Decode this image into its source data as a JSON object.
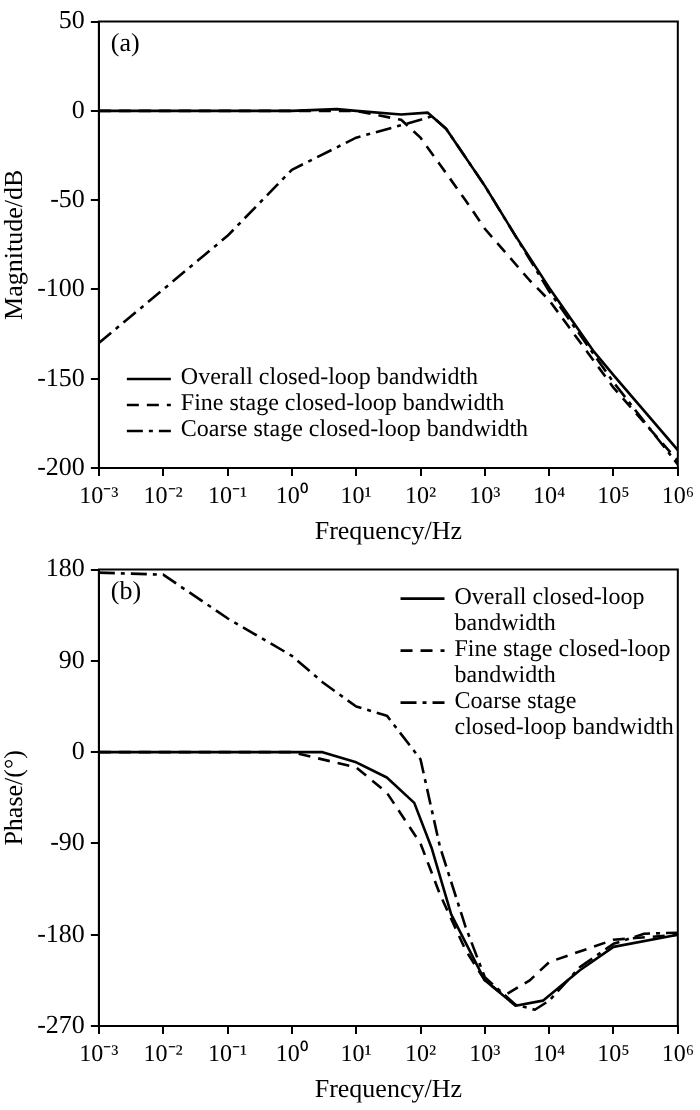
{
  "chart_data": [
    {
      "type": "line",
      "xlabel": "Frequency/Hz",
      "ylabel": "Magnitude/dB",
      "annotations": [
        "(a)"
      ],
      "log": "x",
      "grid": false,
      "legend": "bottom left",
      "marker": "none",
      "xlim": [
        0.001,
        1000000
      ],
      "xticks": [
        {
          "value": 0.001,
          "label": "10⁻³"
        },
        {
          "value": 0.01,
          "label": "10⁻²"
        },
        {
          "value": 0.1,
          "label": "10⁻¹"
        },
        {
          "value": 1,
          "label": "10⁰"
        },
        {
          "value": 10,
          "label": "10¹"
        },
        {
          "value": 100,
          "label": "10²"
        },
        {
          "value": 1000,
          "label": "10³"
        },
        {
          "value": 10000,
          "label": "10⁴"
        },
        {
          "value": 100000,
          "label": "10⁵"
        },
        {
          "value": 1000000,
          "label": "10⁶"
        }
      ],
      "ylim": [
        -200,
        50
      ],
      "yticks": [
        -200,
        -150,
        -100,
        -50,
        0,
        50
      ],
      "series": [
        {
          "name": "Overall closed-loop bandwidth",
          "color": "#000000",
          "line_style": "solid",
          "x": [
            0.001,
            1,
            5,
            10,
            50,
            130,
            250,
            1000,
            3000,
            10000,
            50000,
            100000,
            1000000
          ],
          "values": [
            0,
            0,
            1,
            0,
            -2,
            -1,
            -10,
            -42,
            -70,
            -99,
            -135,
            -148,
            -190
          ]
        },
        {
          "name": "Fine stage closed-loop bandwidth",
          "color": "#000000",
          "line_style": "dashed",
          "x": [
            0.001,
            1,
            10,
            50,
            100,
            200,
            500,
            1000,
            5000,
            10000,
            100000,
            1000000
          ],
          "values": [
            0,
            0,
            0,
            -5,
            -15,
            -30,
            -50,
            -66,
            -95,
            -106,
            -155,
            -196
          ]
        },
        {
          "name": "Coarse stage closed-loop bandwidth",
          "color": "#000000",
          "line_style": "dashdot",
          "x": [
            0.001,
            0.01,
            0.1,
            1,
            10,
            100,
            150,
            250,
            1000,
            10000,
            100000,
            1000000
          ],
          "values": [
            -130,
            -100,
            -70,
            -33,
            -15,
            -5,
            -3,
            -10,
            -42,
            -101,
            -152,
            -198
          ]
        }
      ]
    },
    {
      "type": "line",
      "xlabel": "Frequency/Hz",
      "ylabel": "Phase/(°)",
      "annotations": [
        "(b)"
      ],
      "log": "x",
      "grid": false,
      "legend": "top right",
      "marker": "none",
      "xlim": [
        0.001,
        1000000
      ],
      "xticks": [
        {
          "value": 0.001,
          "label": "10⁻³"
        },
        {
          "value": 0.01,
          "label": "10⁻²"
        },
        {
          "value": 0.1,
          "label": "10⁻¹"
        },
        {
          "value": 1,
          "label": "10⁰"
        },
        {
          "value": 10,
          "label": "10¹"
        },
        {
          "value": 100,
          "label": "10²"
        },
        {
          "value": 1000,
          "label": "10³"
        },
        {
          "value": 10000,
          "label": "10⁴"
        },
        {
          "value": 100000,
          "label": "10⁵"
        },
        {
          "value": 1000000,
          "label": "10⁶"
        }
      ],
      "ylim": [
        -270,
        180
      ],
      "yticks": [
        -270,
        -180,
        -90,
        0,
        90,
        180
      ],
      "series": [
        {
          "name": "Overall closed-loop bandwidth",
          "color": "#000000",
          "line_style": "solid",
          "x": [
            0.001,
            1,
            3,
            10,
            30,
            80,
            150,
            300,
            1000,
            3000,
            8000,
            30000,
            100000,
            1000000
          ],
          "values": [
            0,
            0,
            0,
            -10,
            -25,
            -50,
            -95,
            -160,
            -225,
            -250,
            -245,
            -215,
            -192,
            -180
          ]
        },
        {
          "name": "Fine stage closed-loop bandwidth",
          "color": "#000000",
          "line_style": "dashed",
          "x": [
            0.001,
            1,
            10,
            30,
            100,
            200,
            500,
            1000,
            2000,
            5000,
            10000,
            100000,
            1000000
          ],
          "values": [
            0,
            0,
            -15,
            -40,
            -90,
            -140,
            -195,
            -225,
            -240,
            -225,
            -207,
            -185,
            -180
          ]
        },
        {
          "name": "Coarse stage closed-loop bandwidth",
          "color": "#000000",
          "line_style": "dashdot",
          "x": [
            0.001,
            0.01,
            0.1,
            1,
            3,
            10,
            30,
            100,
            200,
            500,
            1000,
            3000,
            6000,
            10000,
            30000,
            100000,
            300000,
            1000000
          ],
          "values": [
            177,
            175,
            132,
            95,
            69,
            45,
            36,
            -7,
            -93,
            -172,
            -222,
            -249,
            -254,
            -245,
            -212,
            -189,
            -179,
            -178
          ]
        }
      ]
    }
  ]
}
